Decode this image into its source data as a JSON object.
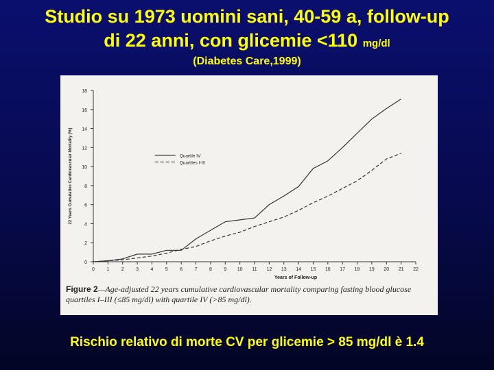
{
  "slide": {
    "title_line1": "Studio su 1973 uomini sani, 40-59 a, follow-up",
    "title_line2": "di 22 anni, con glicemie <110",
    "title_unit": "mg/dl",
    "source": "(Diabetes Care,1999)",
    "conclusion": "Rischio relativo di morte CV per glicemie > 85 mg/dl è 1.4"
  },
  "figure": {
    "label": "Figure 2",
    "caption": "—Age-adjusted 22 years cumulative cardiovascular mortality comparing fasting blood glucose quartiles I–III (≤85 mg/dl) with quartile IV (>85 mg/dl)."
  },
  "colors": {
    "title": "#ffff00",
    "background": "#0a0f6e",
    "scan_paper": "#f3f2ee",
    "quartile_iv": "#333333",
    "quartiles_i_iii": "#333333"
  },
  "chart_data": {
    "type": "line",
    "title": "",
    "xlabel": "Years of Follow-up",
    "ylabel": "22 Years Cumulative Cardiovascular Mortality (%)",
    "xlim": [
      0,
      22
    ],
    "ylim": [
      0,
      18
    ],
    "xticks": [
      0,
      1,
      2,
      3,
      4,
      5,
      6,
      7,
      8,
      9,
      10,
      11,
      12,
      13,
      14,
      15,
      16,
      17,
      18,
      19,
      20,
      21,
      22
    ],
    "yticks": [
      0,
      2,
      4,
      6,
      8,
      10,
      12,
      14,
      16,
      18
    ],
    "grid": false,
    "legend_position": "top-left",
    "x": [
      0,
      1,
      2,
      3,
      4,
      5,
      6,
      7,
      8,
      9,
      10,
      11,
      12,
      13,
      14,
      15,
      16,
      17,
      18,
      19,
      20,
      21
    ],
    "series": [
      {
        "name": "Quartile IV",
        "style": "solid",
        "values": [
          0,
          0.1,
          0.3,
          0.8,
          0.8,
          1.2,
          1.2,
          2.4,
          3.3,
          4.2,
          4.4,
          4.6,
          6.0,
          6.9,
          7.9,
          9.8,
          10.6,
          12.0,
          13.5,
          15.0,
          16.1,
          17.1
        ]
      },
      {
        "name": "Quartiles I-III",
        "style": "dashed",
        "values": [
          0,
          0.1,
          0.2,
          0.4,
          0.6,
          0.9,
          1.3,
          1.6,
          2.2,
          2.7,
          3.1,
          3.7,
          4.2,
          4.7,
          5.4,
          6.2,
          6.9,
          7.7,
          8.5,
          9.6,
          10.8,
          11.4
        ]
      }
    ]
  }
}
